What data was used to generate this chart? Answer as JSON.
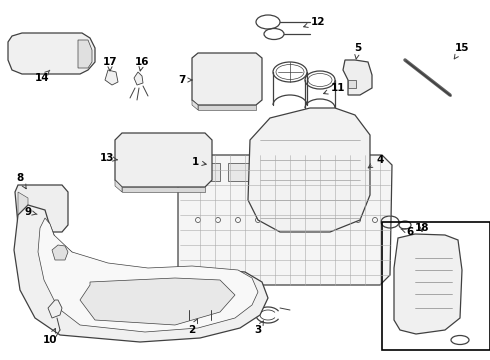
{
  "bg_color": "#ffffff",
  "line_color": "#404040",
  "label_color": "#000000",
  "fig_width": 4.9,
  "fig_height": 3.6,
  "dpi": 100,
  "border_color": "#000000"
}
